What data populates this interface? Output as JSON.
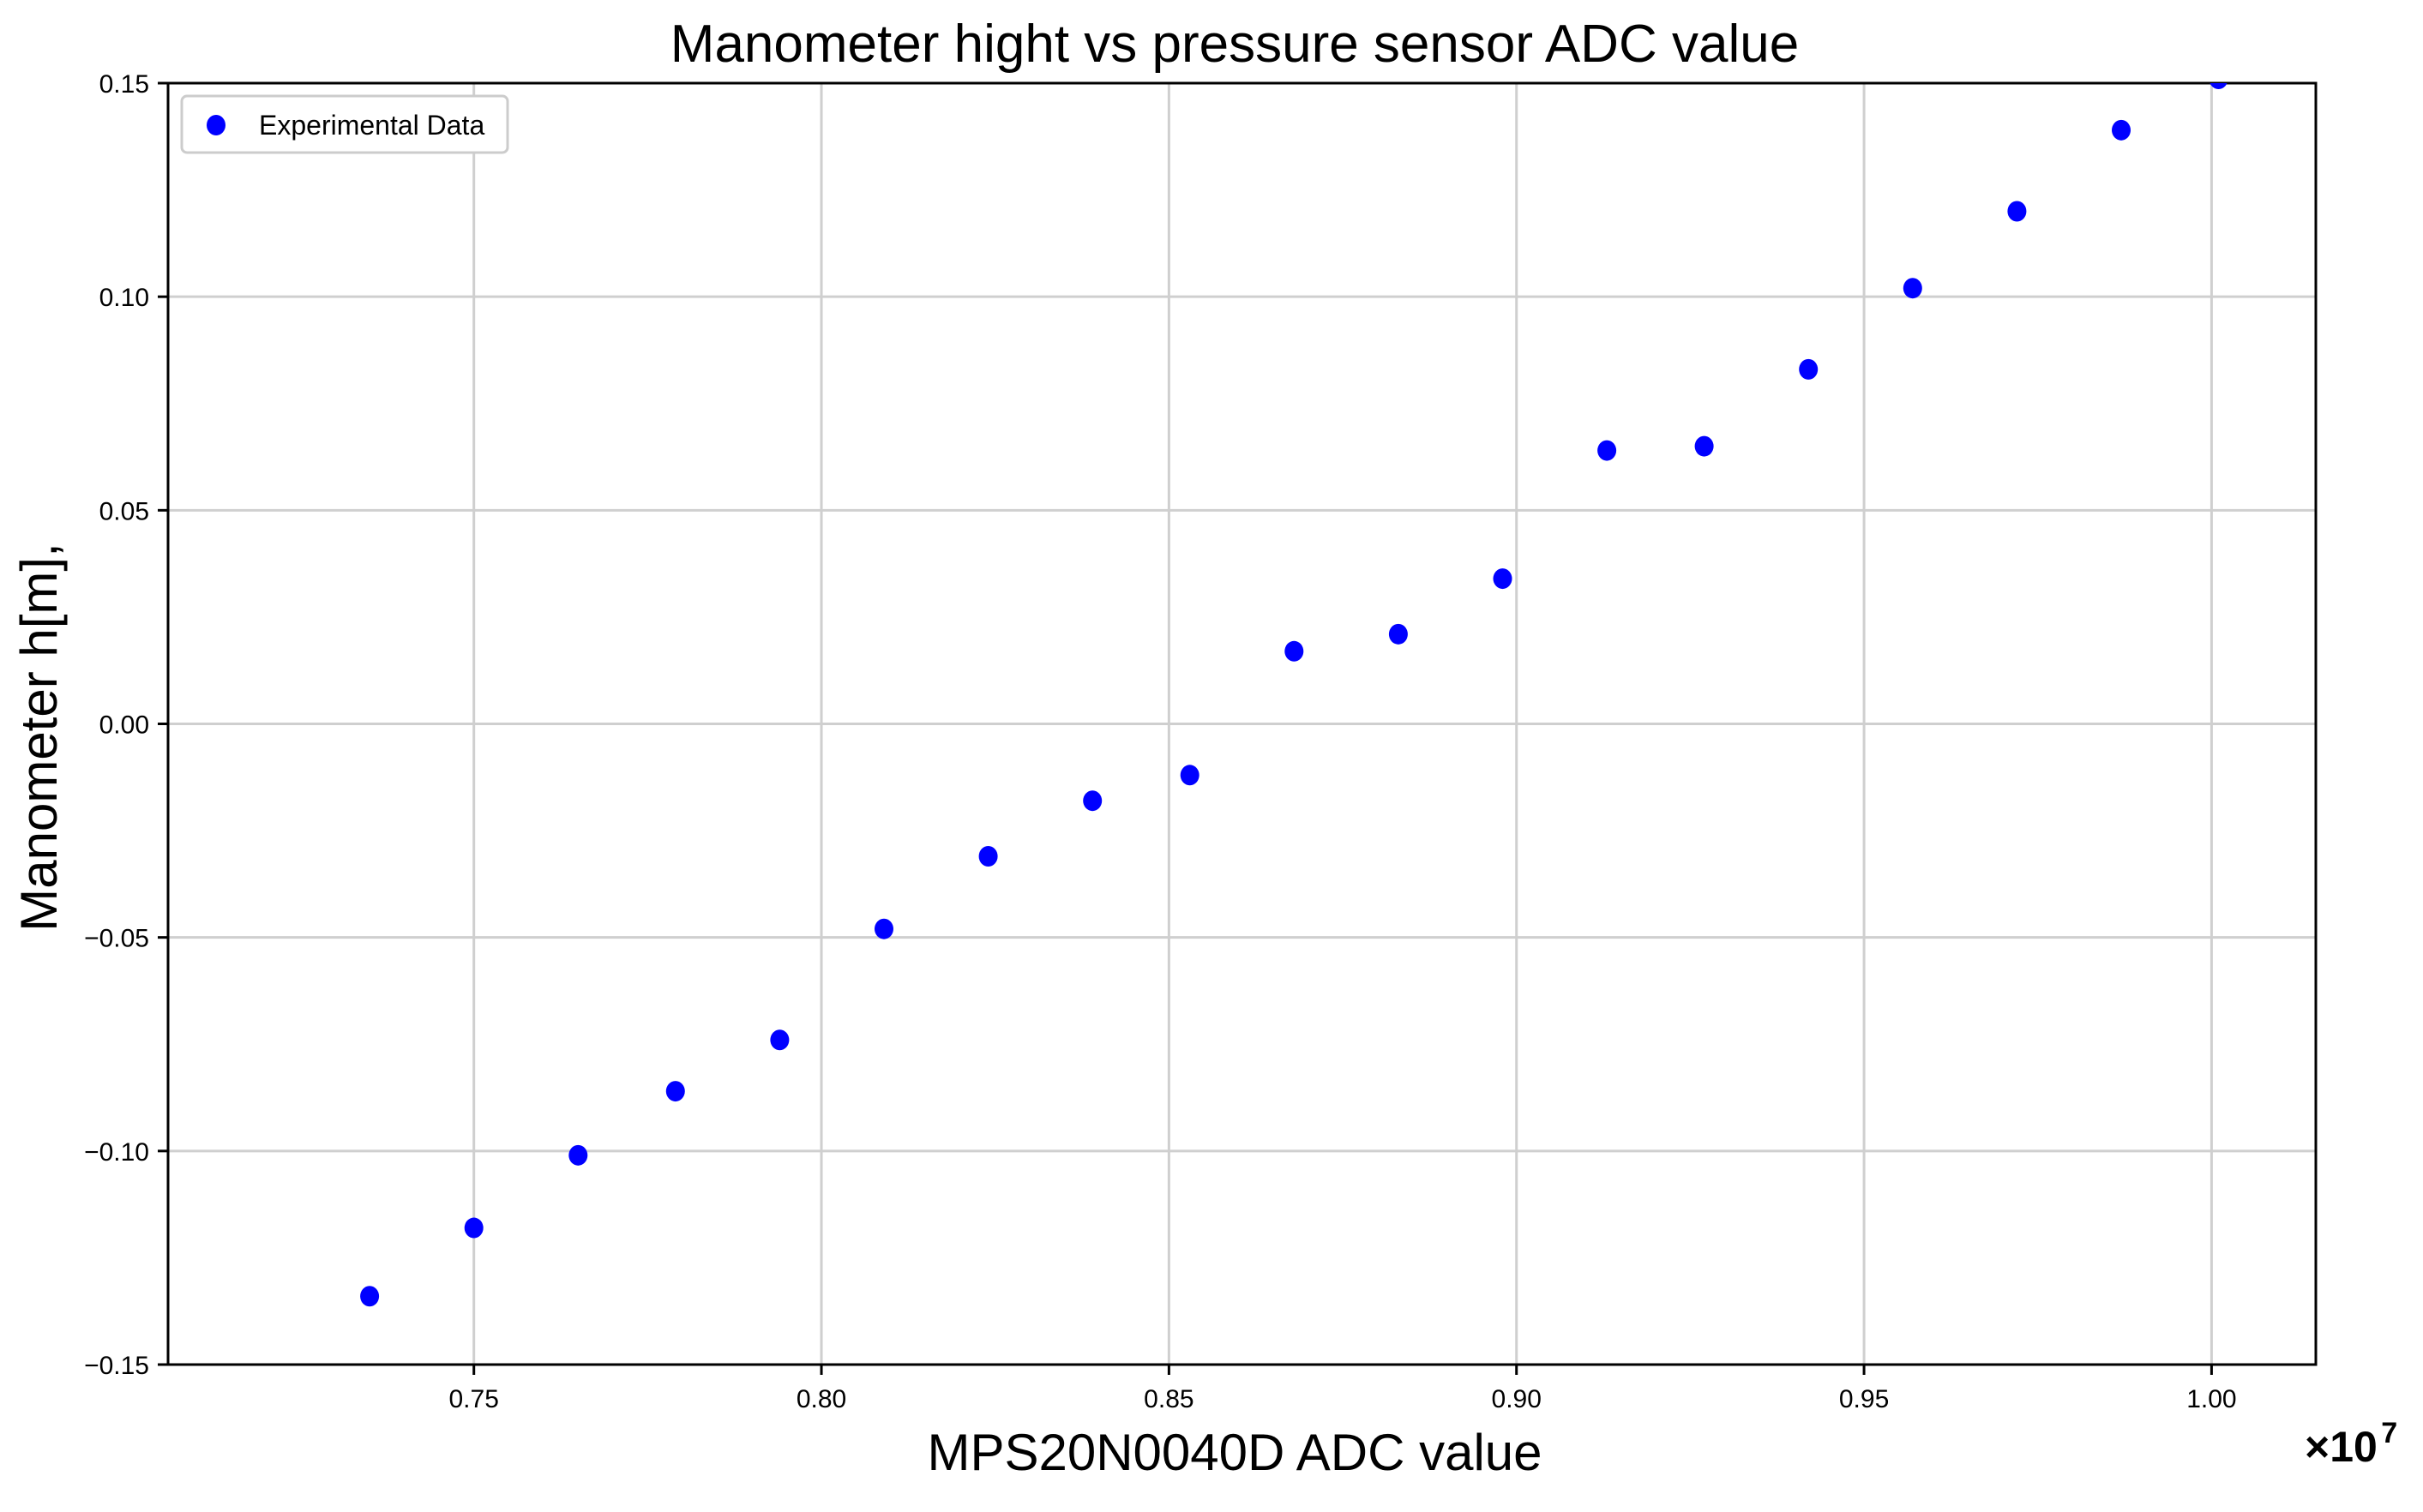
{
  "chart_data": {
    "type": "scatter",
    "title": "Manometer hight vs pressure sensor ADC value",
    "xlabel": "MPS20N0040D ADC value",
    "ylabel": "Manometer h[m],",
    "x_offset_label": "×10",
    "x_offset_exponent": "7",
    "xlim": [
      0.706,
      1.015
    ],
    "ylim": [
      -0.15,
      0.15
    ],
    "x_ticks": [
      0.75,
      0.8,
      0.85,
      0.9,
      0.95,
      1.0
    ],
    "x_tick_labels": [
      "0.75",
      "0.80",
      "0.85",
      "0.90",
      "0.95",
      "1.00"
    ],
    "y_ticks": [
      -0.15,
      -0.1,
      -0.05,
      0.0,
      0.05,
      0.1,
      0.15
    ],
    "y_tick_labels": [
      "−0.15",
      "−0.10",
      "−0.05",
      "0.00",
      "0.05",
      "0.10",
      "0.15"
    ],
    "grid": true,
    "legend": {
      "position": "top-left",
      "entries": [
        "Experimental Data"
      ]
    },
    "series": [
      {
        "name": "Experimental Data",
        "color": "#0000ff",
        "x": [
          0.735,
          0.75,
          0.765,
          0.779,
          0.794,
          0.809,
          0.824,
          0.839,
          0.853,
          0.868,
          0.883,
          0.898,
          0.913,
          0.927,
          0.942,
          0.957,
          0.972,
          0.987,
          1.001
        ],
        "y": [
          -0.134,
          -0.118,
          -0.101,
          -0.086,
          -0.074,
          -0.048,
          -0.031,
          -0.018,
          -0.012,
          0.017,
          0.021,
          0.034,
          0.064,
          0.065,
          0.083,
          0.102,
          0.12,
          0.139,
          0.151
        ]
      }
    ]
  }
}
